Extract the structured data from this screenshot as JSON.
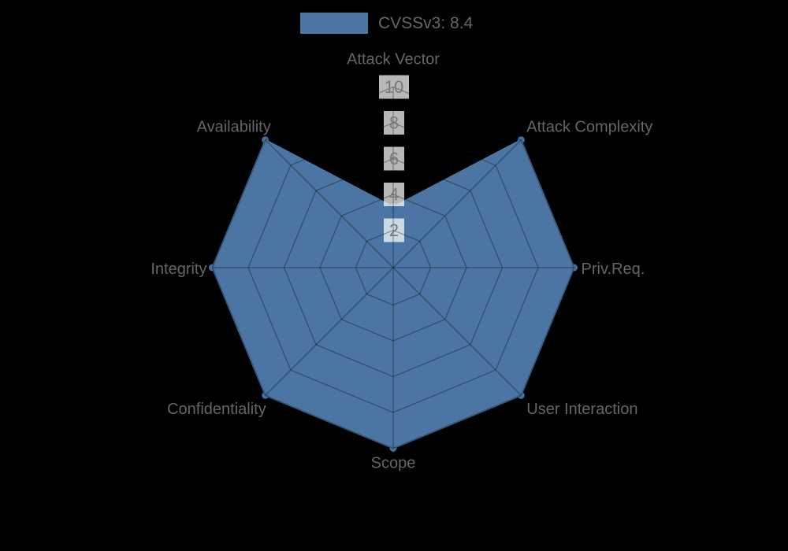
{
  "page": {
    "background_color": "#000000"
  },
  "legend": {
    "label": "CVSSv3: 8.4",
    "swatch_color": "#4b76a3"
  },
  "chart_data": {
    "type": "radar",
    "title": "",
    "categories": [
      "Attack Vector",
      "Attack Complexity",
      "Priv.Req.",
      "User Interaction",
      "Scope",
      "Confidentiality",
      "Integrity",
      "Availability"
    ],
    "series": [
      {
        "name": "CVSSv3: 8.4",
        "values": [
          3.3,
          10,
          10,
          10,
          10,
          10,
          10,
          10
        ]
      }
    ],
    "radial_ticks": [
      2,
      4,
      6,
      8,
      10
    ],
    "rlim": [
      0,
      10
    ],
    "grid": true,
    "grid_shape": "polygon",
    "legend_position": "top-center",
    "colors": {
      "fill": "#4b76a3",
      "marker": "#44709e",
      "grid_line_rgba": "0,0,0,0.30",
      "axis_label": "#666666",
      "tick_label": "#787878",
      "tick_box_rgba": "255,255,255,0.72"
    }
  }
}
